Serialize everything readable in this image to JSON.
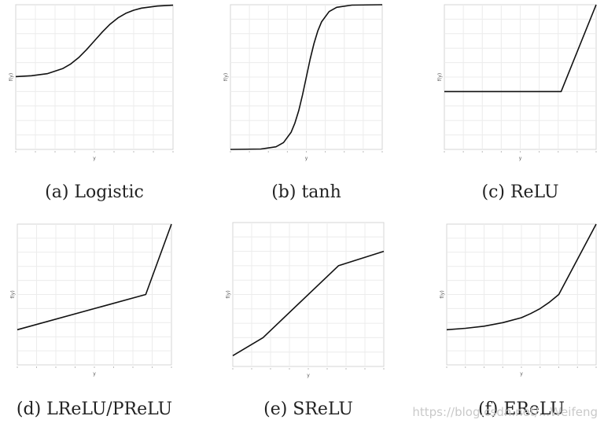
{
  "figure": {
    "watermark": "https://blog.csdn.net/...Weifeng"
  },
  "chart_data": [
    {
      "id": "a",
      "type": "line",
      "caption": "(a) Logistic",
      "xlabel": "y",
      "ylabel": "f(y)",
      "xlim": [
        -5,
        5
      ],
      "ylim": [
        -1,
        1
      ],
      "grid": true,
      "color": "#111111",
      "series": [
        {
          "x": [
            -5,
            -4,
            -3,
            -2,
            -1.5,
            -1,
            -0.5,
            0,
            0.5,
            1,
            1.5,
            2,
            2.5,
            3,
            4,
            5
          ],
          "y": [
            0.007,
            0.018,
            0.047,
            0.119,
            0.182,
            0.269,
            0.378,
            0.5,
            0.622,
            0.731,
            0.818,
            0.881,
            0.924,
            0.953,
            0.982,
            0.993
          ]
        }
      ]
    },
    {
      "id": "b",
      "type": "line",
      "caption": "(b) tanh",
      "xlabel": "y",
      "ylabel": "f(y)",
      "xlim": [
        -5,
        5
      ],
      "ylim": [
        -1,
        1
      ],
      "grid": true,
      "color": "#111111",
      "series": [
        {
          "x": [
            -5,
            -3,
            -2,
            -1.5,
            -1,
            -0.75,
            -0.5,
            -0.25,
            0,
            0.25,
            0.5,
            0.75,
            1,
            1.5,
            2,
            3,
            5
          ],
          "y": [
            -1.0,
            -0.995,
            -0.964,
            -0.905,
            -0.762,
            -0.635,
            -0.462,
            -0.245,
            0,
            0.245,
            0.462,
            0.635,
            0.762,
            0.905,
            0.964,
            0.995,
            1.0
          ]
        }
      ]
    },
    {
      "id": "c",
      "type": "line",
      "caption": "(c) ReLU",
      "xlabel": "y",
      "ylabel": "f(y)",
      "xlim": [
        -5,
        1.5
      ],
      "ylim": [
        -1,
        1.5
      ],
      "grid": true,
      "color": "#111111",
      "series": [
        {
          "x": [
            -5,
            0,
            1.5
          ],
          "y": [
            0,
            0,
            1.5
          ]
        }
      ]
    },
    {
      "id": "d",
      "type": "line",
      "caption": "(d) LReLU/PReLU",
      "xlabel": "y",
      "ylabel": "f(y)",
      "xlim": [
        -5,
        1
      ],
      "ylim": [
        -1,
        1
      ],
      "grid": true,
      "color": "#111111",
      "series": [
        {
          "x": [
            -5,
            0,
            1
          ],
          "y": [
            -0.5,
            0,
            1
          ]
        }
      ]
    },
    {
      "id": "e",
      "type": "line",
      "caption": "(e) SReLU",
      "xlabel": "y",
      "ylabel": "f(y)",
      "xlim": [
        -2,
        2
      ],
      "ylim": [
        -2,
        2
      ],
      "grid": true,
      "color": "#111111",
      "series": [
        {
          "x": [
            -2,
            -1.2,
            0.8,
            2
          ],
          "y": [
            -1.7,
            -1.2,
            0.8,
            1.2
          ]
        }
      ]
    },
    {
      "id": "f",
      "type": "line",
      "caption": "(f) EReLU",
      "xlabel": "y",
      "ylabel": "f(y)",
      "xlim": [
        -3,
        1
      ],
      "ylim": [
        -1,
        1
      ],
      "grid": true,
      "color": "#111111",
      "series": [
        {
          "x": [
            -3,
            -2.5,
            -2,
            -1.5,
            -1,
            -0.75,
            -0.5,
            -0.25,
            0,
            1
          ],
          "y": [
            -0.5,
            -0.48,
            -0.45,
            -0.4,
            -0.33,
            -0.27,
            -0.2,
            -0.11,
            0,
            1
          ]
        }
      ]
    }
  ]
}
